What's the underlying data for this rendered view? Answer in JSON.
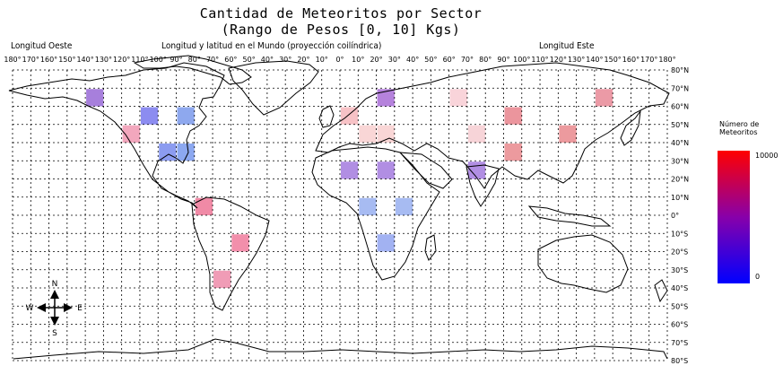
{
  "title": "Cantidad de Meteoritos por Sector",
  "subtitle": "(Rango de Pesos [0, 10] Kgs)",
  "labels": {
    "west": "Longitud Oeste",
    "center": "Longitud y latitud en el Mundo (proyección coilíndrica)",
    "east": "Longitud Este"
  },
  "compass": {
    "n": "N",
    "s": "S",
    "e": "E",
    "w": "W"
  },
  "legend": {
    "title_line1": "Número de",
    "title_line2": "Meteoritos",
    "max_label": "10000",
    "min_label": "0",
    "color_max": "#ff0000",
    "color_mid": "#8800aa",
    "color_min": "#0000ff"
  },
  "axes": {
    "lon_labels": [
      "180°",
      "170°",
      "160°",
      "150°",
      "140°",
      "130°",
      "120°",
      "110°",
      "100°",
      "90°",
      "80°",
      "70°",
      "60°",
      "50°",
      "40°",
      "30°",
      "20°",
      "10°",
      "0°",
      "10°",
      "20°",
      "30°",
      "40°",
      "50°",
      "60°",
      "70°",
      "80°",
      "90°",
      "100°",
      "110°",
      "120°",
      "130°",
      "140°",
      "150°",
      "160°",
      "170°",
      "180°"
    ],
    "lat_labels": [
      "80°N",
      "70°N",
      "60°N",
      "50°N",
      "40°N",
      "30°N",
      "20°N",
      "10°N",
      "0°",
      "10°S",
      "20°S",
      "30°S",
      "40°S",
      "50°S",
      "60°S",
      "70°S",
      "80°S"
    ],
    "lon_step_deg": 10,
    "lat_step_deg": 10,
    "lon_range": [
      -180,
      180
    ],
    "lat_range": [
      80,
      -80
    ],
    "grid": true
  },
  "chart_data": {
    "type": "heatmap",
    "title": "Cantidad de Meteoritos por Sector",
    "subtitle": "(Rango de Pesos [0, 10] Kgs)",
    "xlabel": "Longitud y latitud en el Mundo (proyección coilíndrica)",
    "legend_title": "Número de Meteoritos",
    "color_range": [
      0,
      10000
    ],
    "cells": [
      {
        "lon": [
          -140,
          -130
        ],
        "lat": [
          70,
          60
        ],
        "color": "#a77fdc"
      },
      {
        "lon": [
          -110,
          -100
        ],
        "lat": [
          60,
          50
        ],
        "color": "#8c8cf0"
      },
      {
        "lon": [
          -90,
          -80
        ],
        "lat": [
          60,
          50
        ],
        "color": "#8ea8ee"
      },
      {
        "lon": [
          -120,
          -110
        ],
        "lat": [
          50,
          40
        ],
        "color": "#f2a7bd"
      },
      {
        "lon": [
          -100,
          -90
        ],
        "lat": [
          40,
          30
        ],
        "color": "#8c9cf0"
      },
      {
        "lon": [
          -90,
          -80
        ],
        "lat": [
          40,
          30
        ],
        "color": "#8ca8f0"
      },
      {
        "lon": [
          -80,
          -70
        ],
        "lat": [
          10,
          0
        ],
        "color": "#f08aa6"
      },
      {
        "lon": [
          -60,
          -50
        ],
        "lat": [
          -10,
          -20
        ],
        "color": "#f28fab"
      },
      {
        "lon": [
          -70,
          -60
        ],
        "lat": [
          -30,
          -40
        ],
        "color": "#f09cb6"
      },
      {
        "lon": [
          0,
          10
        ],
        "lat": [
          60,
          50
        ],
        "color": "#f7c2c6"
      },
      {
        "lon": [
          10,
          20
        ],
        "lat": [
          50,
          40
        ],
        "color": "#f9d6d6"
      },
      {
        "lon": [
          20,
          30
        ],
        "lat": [
          50,
          40
        ],
        "color": "#f9d6d6"
      },
      {
        "lon": [
          20,
          30
        ],
        "lat": [
          70,
          60
        ],
        "color": "#b582dc"
      },
      {
        "lon": [
          60,
          70
        ],
        "lat": [
          70,
          60
        ],
        "color": "#f9d4da"
      },
      {
        "lon": [
          140,
          150
        ],
        "lat": [
          70,
          60
        ],
        "color": "#eb9aa6"
      },
      {
        "lon": [
          90,
          100
        ],
        "lat": [
          60,
          50
        ],
        "color": "#eb959d"
      },
      {
        "lon": [
          70,
          80
        ],
        "lat": [
          50,
          40
        ],
        "color": "#f7d4d8"
      },
      {
        "lon": [
          120,
          130
        ],
        "lat": [
          50,
          40
        ],
        "color": "#ec9a9e"
      },
      {
        "lon": [
          90,
          100
        ],
        "lat": [
          40,
          30
        ],
        "color": "#ec9a9e"
      },
      {
        "lon": [
          0,
          10
        ],
        "lat": [
          30,
          20
        ],
        "color": "#b18ee3"
      },
      {
        "lon": [
          20,
          30
        ],
        "lat": [
          30,
          20
        ],
        "color": "#b18ee3"
      },
      {
        "lon": [
          70,
          80
        ],
        "lat": [
          30,
          20
        ],
        "color": "#b18ee3"
      },
      {
        "lon": [
          10,
          20
        ],
        "lat": [
          10,
          0
        ],
        "color": "#a7bbf2"
      },
      {
        "lon": [
          30,
          40
        ],
        "lat": [
          10,
          0
        ],
        "color": "#a7bbf2"
      },
      {
        "lon": [
          20,
          30
        ],
        "lat": [
          -10,
          -20
        ],
        "color": "#a2b2f2"
      }
    ]
  }
}
